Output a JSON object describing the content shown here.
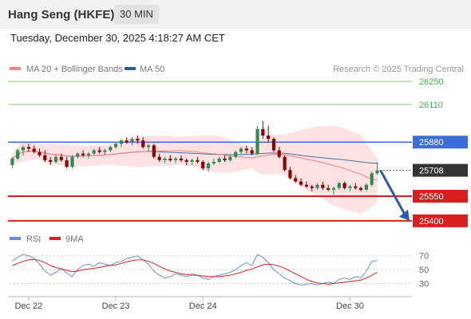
{
  "header": {
    "instrument": "Hang Seng (HKFE)",
    "timeframe": "30 MIN",
    "datetime": "Tuesday, December 30, 2025 4:18:27 AM CET"
  },
  "legend": {
    "ma20": "MA 20 + Bollinger Bands",
    "ma50": "MA 50",
    "credit": "Research © 2025 Trading Central"
  },
  "rsi_legend": {
    "rsi": "RSI",
    "ma": "9MA"
  },
  "colors": {
    "up": "#2e8b57",
    "down": "#8b0000",
    "ma20": "#ff8080",
    "bands": "#ffd6d6",
    "ma50": "#4a6fa5",
    "resistance": "#8fce6c",
    "pivot": "#3b6ed8",
    "support": "#d91e1e",
    "last_price": "#333333",
    "arrow": "#2a5caa",
    "rsi": "#6a8fd8",
    "rsi_ma": "#e02020"
  },
  "chart_data": [
    {
      "type": "candlestick",
      "ylim": [
        25380,
        26280
      ],
      "x_ticks": [
        "Dec 22",
        "Dec 23",
        "Dec 24",
        "Dec 30"
      ],
      "levels": [
        {
          "value": 26250,
          "label": "26250",
          "kind": "resistance"
        },
        {
          "value": 26110,
          "label": "26110",
          "kind": "resistance"
        },
        {
          "value": 25880,
          "label": "25880",
          "kind": "pivot"
        },
        {
          "value": 25708,
          "label": "25708",
          "kind": "last"
        },
        {
          "value": 25550,
          "label": "25550",
          "kind": "support"
        },
        {
          "value": 25400,
          "label": "25400",
          "kind": "support"
        }
      ],
      "candles": [
        [
          25740,
          25790,
          25720,
          25780
        ],
        [
          25780,
          25840,
          25770,
          25830
        ],
        [
          25830,
          25860,
          25800,
          25850
        ],
        [
          25850,
          25870,
          25820,
          25840
        ],
        [
          25840,
          25860,
          25810,
          25820
        ],
        [
          25820,
          25840,
          25790,
          25800
        ],
        [
          25800,
          25830,
          25760,
          25770
        ],
        [
          25770,
          25790,
          25740,
          25760
        ],
        [
          25760,
          25800,
          25750,
          25790
        ],
        [
          25790,
          25810,
          25760,
          25770
        ],
        [
          25770,
          25790,
          25720,
          25730
        ],
        [
          25730,
          25800,
          25720,
          25790
        ],
        [
          25790,
          25820,
          25780,
          25810
        ],
        [
          25810,
          25830,
          25790,
          25800
        ],
        [
          25800,
          25820,
          25780,
          25810
        ],
        [
          25810,
          25840,
          25800,
          25830
        ],
        [
          25830,
          25850,
          25810,
          25820
        ],
        [
          25820,
          25840,
          25800,
          25830
        ],
        [
          25830,
          25860,
          25820,
          25850
        ],
        [
          25850,
          25880,
          25840,
          25870
        ],
        [
          25870,
          25900,
          25850,
          25890
        ],
        [
          25890,
          25910,
          25870,
          25880
        ],
        [
          25880,
          25910,
          25860,
          25900
        ],
        [
          25900,
          25920,
          25870,
          25890
        ],
        [
          25890,
          25910,
          25840,
          25850
        ],
        [
          25850,
          25870,
          25820,
          25860
        ],
        [
          25860,
          25870,
          25780,
          25790
        ],
        [
          25790,
          25810,
          25760,
          25770
        ],
        [
          25770,
          25790,
          25750,
          25780
        ],
        [
          25780,
          25800,
          25760,
          25770
        ],
        [
          25770,
          25790,
          25750,
          25780
        ],
        [
          25780,
          25800,
          25760,
          25770
        ],
        [
          25770,
          25780,
          25740,
          25760
        ],
        [
          25760,
          25780,
          25740,
          25770
        ],
        [
          25770,
          25790,
          25750,
          25760
        ],
        [
          25760,
          25770,
          25710,
          25720
        ],
        [
          25720,
          25760,
          25700,
          25750
        ],
        [
          25750,
          25780,
          25740,
          25760
        ],
        [
          25760,
          25790,
          25750,
          25780
        ],
        [
          25780,
          25800,
          25760,
          25770
        ],
        [
          25770,
          25800,
          25760,
          25790
        ],
        [
          25790,
          25830,
          25780,
          25820
        ],
        [
          25820,
          25850,
          25800,
          25840
        ],
        [
          25840,
          25860,
          25810,
          25830
        ],
        [
          25830,
          25850,
          25800,
          25810
        ],
        [
          25810,
          25980,
          25800,
          25960
        ],
        [
          25960,
          26010,
          25900,
          25920
        ],
        [
          25920,
          25980,
          25880,
          25900
        ],
        [
          25900,
          25910,
          25820,
          25830
        ],
        [
          25830,
          25850,
          25780,
          25790
        ],
        [
          25790,
          25800,
          25700,
          25710
        ],
        [
          25710,
          25730,
          25650,
          25660
        ],
        [
          25660,
          25680,
          25630,
          25640
        ],
        [
          25640,
          25660,
          25610,
          25620
        ],
        [
          25620,
          25640,
          25600,
          25610
        ],
        [
          25610,
          25620,
          25580,
          25600
        ],
        [
          25600,
          25630,
          25590,
          25620
        ],
        [
          25620,
          25640,
          25590,
          25600
        ],
        [
          25600,
          25620,
          25580,
          25590
        ],
        [
          25590,
          25610,
          25560,
          25600
        ],
        [
          25600,
          25640,
          25590,
          25630
        ],
        [
          25630,
          25640,
          25590,
          25600
        ],
        [
          25600,
          25620,
          25580,
          25610
        ],
        [
          25610,
          25630,
          25590,
          25600
        ],
        [
          25600,
          25610,
          25580,
          25590
        ],
        [
          25590,
          25630,
          25580,
          25620
        ],
        [
          25620,
          25700,
          25610,
          25690
        ],
        [
          25690,
          25760,
          25680,
          25708
        ]
      ]
    },
    {
      "type": "line",
      "name": "RSI panel",
      "ylim": [
        18,
        80
      ],
      "y_ticks": [
        70,
        50,
        30
      ],
      "series": [
        {
          "name": "RSI",
          "values": [
            62,
            68,
            72,
            70,
            66,
            58,
            48,
            42,
            46,
            52,
            45,
            40,
            50,
            56,
            58,
            55,
            60,
            58,
            56,
            60,
            62,
            66,
            68,
            70,
            64,
            58,
            48,
            42,
            38,
            40,
            44,
            42,
            40,
            44,
            42,
            38,
            36,
            40,
            42,
            44,
            46,
            50,
            56,
            60,
            56,
            72,
            68,
            60,
            50,
            44,
            38,
            34,
            30,
            28,
            29,
            30,
            28,
            30,
            32,
            30,
            36,
            38,
            36,
            40,
            38,
            48,
            62,
            63
          ]
        },
        {
          "name": "9MA",
          "values": [
            56,
            59,
            62,
            64,
            65,
            63,
            60,
            56,
            53,
            51,
            49,
            47,
            48,
            50,
            51,
            52,
            53,
            55,
            56,
            57,
            59,
            61,
            63,
            64,
            64,
            62,
            59,
            55,
            51,
            48,
            46,
            44,
            43,
            42,
            42,
            41,
            40,
            40,
            40,
            41,
            42,
            44,
            46,
            49,
            51,
            54,
            57,
            58,
            57,
            55,
            52,
            48,
            44,
            40,
            36,
            33,
            31,
            30,
            29,
            30,
            31,
            32,
            33,
            34,
            35,
            38,
            42,
            46
          ]
        }
      ]
    }
  ]
}
